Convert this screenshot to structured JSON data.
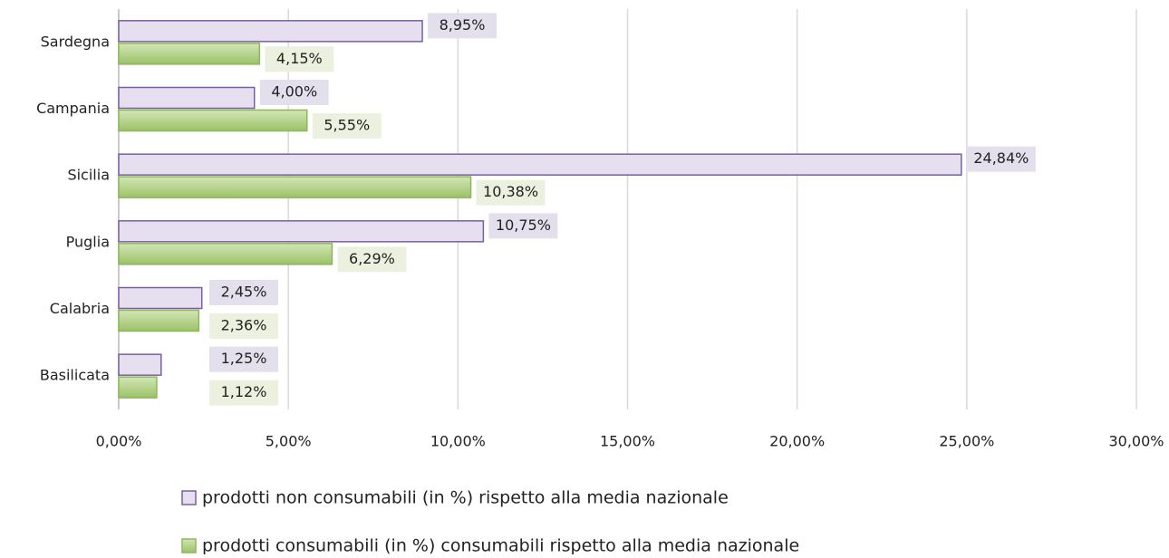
{
  "chart_data": {
    "type": "hbar",
    "categories": [
      "Sardegna",
      "Campania",
      "Sicilia",
      "Puglia",
      "Calabria",
      "Basilicata"
    ],
    "series": [
      {
        "name": "prodotti non consumabili (in %) rispetto alla media nazionale",
        "color": "#e6dff0",
        "stroke": "#7a5fa0",
        "values": [
          8.95,
          4.0,
          24.84,
          10.75,
          2.45,
          1.25
        ],
        "value_labels": [
          "8,95%",
          "4,00%",
          "24,84%",
          "10,75%",
          "2,45%",
          "1,25%"
        ]
      },
      {
        "name": "prodotti consumabili (in %) consumabili rispetto alla media nazionale",
        "color": "#b3d28a",
        "stroke": "#8db85a",
        "values": [
          4.15,
          5.55,
          10.38,
          6.29,
          2.36,
          1.12
        ],
        "value_labels": [
          "4,15%",
          "5,55%",
          "10,38%",
          "6,29%",
          "2,36%",
          "1,12%"
        ]
      }
    ],
    "xlim": [
      0,
      30
    ],
    "xticks": [
      {
        "value": 0,
        "label": "0,00%"
      },
      {
        "value": 5,
        "label": "5,00%"
      },
      {
        "value": 10,
        "label": "10,00%"
      },
      {
        "value": 15,
        "label": "15,00%"
      },
      {
        "value": 20,
        "label": "20,00%"
      },
      {
        "value": 25,
        "label": "25,00%"
      },
      {
        "value": 30,
        "label": "30,00%"
      }
    ],
    "grid": true,
    "legend": "bottom"
  }
}
